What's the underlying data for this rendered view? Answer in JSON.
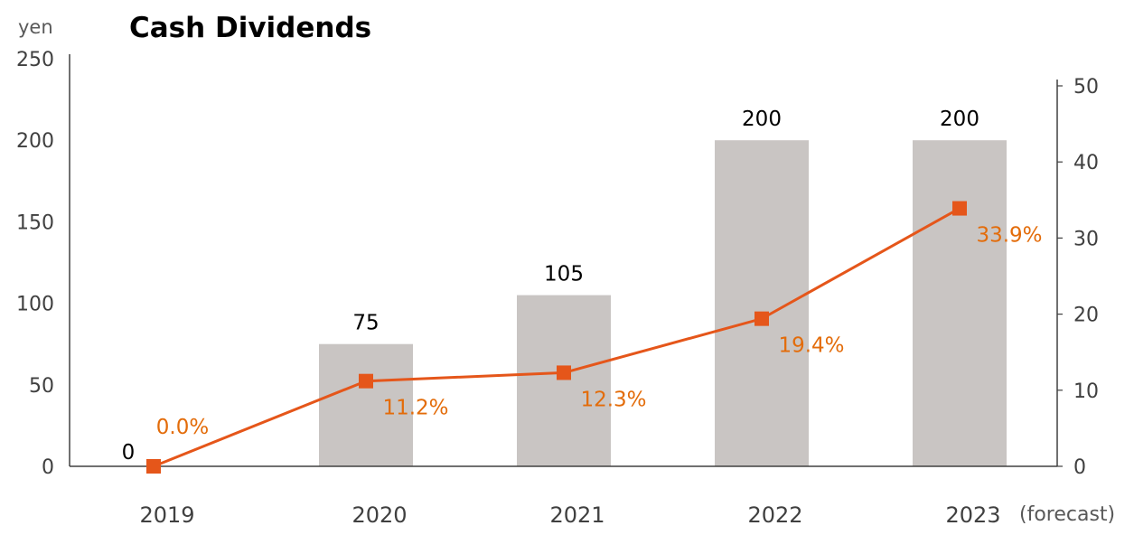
{
  "chart_data": {
    "type": "bar+line",
    "title": "Cash Dividends",
    "ylabel": "yen",
    "categories": [
      "2019",
      "2020",
      "2021",
      "2022",
      "2023"
    ],
    "category_note": "(forecast)",
    "ylim": [
      0,
      250
    ],
    "y_ticks": [
      "0",
      "50",
      "100",
      "150",
      "200",
      "250"
    ],
    "y2lim": [
      0,
      50
    ],
    "y2_ticks": [
      "0",
      "10",
      "20",
      "30",
      "40",
      "50"
    ],
    "bars": {
      "values": [
        0,
        75,
        105,
        200,
        200
      ],
      "labels": [
        "0",
        "75",
        "105",
        "200",
        "200"
      ],
      "color": "#C9C5C3"
    },
    "line": {
      "values": [
        0.0,
        11.2,
        12.3,
        19.4,
        33.9
      ],
      "labels": [
        "0.0%",
        "11.2%",
        "12.3%",
        "19.4%",
        "33.9%"
      ],
      "color": "#E5561A",
      "label_color": "#E36C0A"
    },
    "grid": false
  }
}
